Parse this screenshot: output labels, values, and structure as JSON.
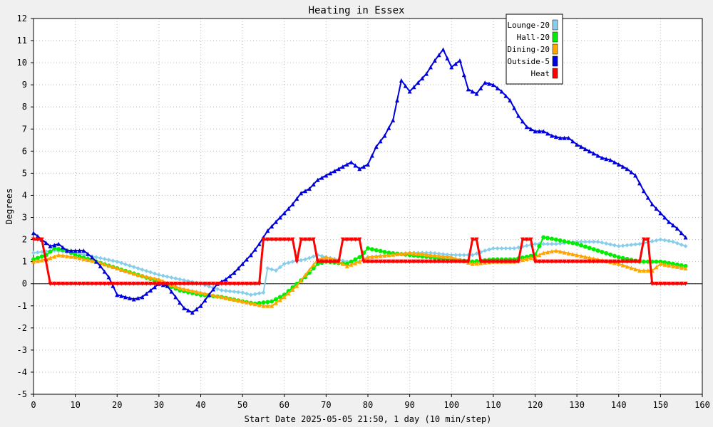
{
  "chart_data": {
    "type": "line",
    "title": "Heating in Essex",
    "xlabel": "Start Date 2025-05-05 21:50, 1 day (10 min/step)",
    "ylabel": "Degrees",
    "xlim": [
      0,
      160
    ],
    "ylim": [
      -5,
      12
    ],
    "xticks": [
      0,
      10,
      20,
      30,
      40,
      50,
      60,
      70,
      80,
      90,
      100,
      110,
      120,
      130,
      140,
      150,
      160
    ],
    "yticks": [
      -5,
      -4,
      -3,
      -2,
      -1,
      0,
      1,
      2,
      3,
      4,
      5,
      6,
      7,
      8,
      9,
      10,
      11,
      12
    ],
    "grid": true,
    "legend_position": "top-right",
    "background": "#f0f0f0",
    "series": [
      {
        "name": "Lounge-20",
        "color": "#87ceeb",
        "marker": "diamond",
        "points": [
          [
            0,
            1.4
          ],
          [
            5,
            1.5
          ],
          [
            10,
            1.4
          ],
          [
            15,
            1.2
          ],
          [
            20,
            1.0
          ],
          [
            25,
            0.7
          ],
          [
            30,
            0.4
          ],
          [
            35,
            0.2
          ],
          [
            40,
            0.0
          ],
          [
            45,
            -0.3
          ],
          [
            50,
            -0.4
          ],
          [
            52,
            -0.5
          ],
          [
            55,
            -0.4
          ],
          [
            56,
            0.7
          ],
          [
            58,
            0.6
          ],
          [
            60,
            0.9
          ],
          [
            62,
            1.0
          ],
          [
            65,
            1.1
          ],
          [
            68,
            1.3
          ],
          [
            70,
            1.2
          ],
          [
            75,
            1.0
          ],
          [
            78,
            1.0
          ],
          [
            80,
            1.2
          ],
          [
            85,
            1.3
          ],
          [
            90,
            1.4
          ],
          [
            95,
            1.4
          ],
          [
            100,
            1.3
          ],
          [
            105,
            1.3
          ],
          [
            108,
            1.5
          ],
          [
            110,
            1.6
          ],
          [
            115,
            1.6
          ],
          [
            120,
            1.8
          ],
          [
            125,
            1.8
          ],
          [
            130,
            1.9
          ],
          [
            135,
            1.9
          ],
          [
            140,
            1.7
          ],
          [
            145,
            1.8
          ],
          [
            150,
            2.0
          ],
          [
            153,
            1.9
          ],
          [
            156,
            1.7
          ]
        ]
      },
      {
        "name": "Hall-20",
        "color": "#00ee00",
        "marker": "circle",
        "points": [
          [
            0,
            1.1
          ],
          [
            3,
            1.3
          ],
          [
            5,
            1.6
          ],
          [
            8,
            1.5
          ],
          [
            10,
            1.3
          ],
          [
            15,
            1.0
          ],
          [
            20,
            0.7
          ],
          [
            25,
            0.4
          ],
          [
            30,
            0.1
          ],
          [
            35,
            -0.3
          ],
          [
            40,
            -0.5
          ],
          [
            45,
            -0.6
          ],
          [
            50,
            -0.8
          ],
          [
            53,
            -0.9
          ],
          [
            57,
            -0.8
          ],
          [
            60,
            -0.5
          ],
          [
            63,
            0.0
          ],
          [
            65,
            0.3
          ],
          [
            68,
            0.9
          ],
          [
            70,
            1.0
          ],
          [
            75,
            0.9
          ],
          [
            78,
            1.2
          ],
          [
            80,
            1.6
          ],
          [
            85,
            1.4
          ],
          [
            90,
            1.3
          ],
          [
            95,
            1.2
          ],
          [
            100,
            1.1
          ],
          [
            105,
            1.0
          ],
          [
            110,
            1.1
          ],
          [
            115,
            1.1
          ],
          [
            120,
            1.3
          ],
          [
            122,
            2.1
          ],
          [
            125,
            2.0
          ],
          [
            130,
            1.8
          ],
          [
            135,
            1.5
          ],
          [
            140,
            1.2
          ],
          [
            145,
            1.0
          ],
          [
            150,
            1.0
          ],
          [
            153,
            0.9
          ],
          [
            156,
            0.8
          ]
        ]
      },
      {
        "name": "Dining-20",
        "color": "#ffa500",
        "marker": "triangle",
        "points": [
          [
            0,
            1.0
          ],
          [
            3,
            1.1
          ],
          [
            6,
            1.3
          ],
          [
            10,
            1.2
          ],
          [
            15,
            1.0
          ],
          [
            20,
            0.7
          ],
          [
            25,
            0.4
          ],
          [
            30,
            0.2
          ],
          [
            35,
            -0.2
          ],
          [
            40,
            -0.4
          ],
          [
            45,
            -0.6
          ],
          [
            50,
            -0.8
          ],
          [
            55,
            -1.0
          ],
          [
            57,
            -1.0
          ],
          [
            60,
            -0.6
          ],
          [
            63,
            -0.1
          ],
          [
            65,
            0.4
          ],
          [
            68,
            1.1
          ],
          [
            70,
            1.2
          ],
          [
            72,
            1.1
          ],
          [
            75,
            0.8
          ],
          [
            78,
            1.0
          ],
          [
            80,
            1.2
          ],
          [
            85,
            1.3
          ],
          [
            90,
            1.4
          ],
          [
            95,
            1.3
          ],
          [
            100,
            1.2
          ],
          [
            105,
            0.9
          ],
          [
            110,
            1.0
          ],
          [
            115,
            1.0
          ],
          [
            120,
            1.2
          ],
          [
            122,
            1.4
          ],
          [
            125,
            1.5
          ],
          [
            130,
            1.3
          ],
          [
            135,
            1.1
          ],
          [
            140,
            0.9
          ],
          [
            145,
            0.6
          ],
          [
            148,
            0.6
          ],
          [
            150,
            0.9
          ],
          [
            153,
            0.8
          ],
          [
            156,
            0.7
          ]
        ]
      },
      {
        "name": "Outside-5",
        "color": "#0000dd",
        "marker": "triangle",
        "points": [
          [
            0,
            2.3
          ],
          [
            2,
            2.0
          ],
          [
            4,
            1.7
          ],
          [
            6,
            1.8
          ],
          [
            8,
            1.5
          ],
          [
            10,
            1.5
          ],
          [
            12,
            1.5
          ],
          [
            14,
            1.2
          ],
          [
            16,
            0.8
          ],
          [
            18,
            0.3
          ],
          [
            20,
            -0.5
          ],
          [
            22,
            -0.6
          ],
          [
            24,
            -0.7
          ],
          [
            26,
            -0.6
          ],
          [
            28,
            -0.3
          ],
          [
            30,
            0.0
          ],
          [
            32,
            -0.1
          ],
          [
            34,
            -0.6
          ],
          [
            36,
            -1.1
          ],
          [
            38,
            -1.3
          ],
          [
            40,
            -1.0
          ],
          [
            42,
            -0.5
          ],
          [
            44,
            0.0
          ],
          [
            46,
            0.2
          ],
          [
            48,
            0.5
          ],
          [
            50,
            0.9
          ],
          [
            52,
            1.3
          ],
          [
            54,
            1.8
          ],
          [
            56,
            2.4
          ],
          [
            58,
            2.8
          ],
          [
            60,
            3.2
          ],
          [
            62,
            3.6
          ],
          [
            64,
            4.1
          ],
          [
            66,
            4.3
          ],
          [
            68,
            4.7
          ],
          [
            70,
            4.9
          ],
          [
            72,
            5.1
          ],
          [
            74,
            5.3
          ],
          [
            76,
            5.5
          ],
          [
            78,
            5.2
          ],
          [
            80,
            5.4
          ],
          [
            82,
            6.2
          ],
          [
            84,
            6.7
          ],
          [
            86,
            7.4
          ],
          [
            88,
            9.2
          ],
          [
            90,
            8.7
          ],
          [
            92,
            9.1
          ],
          [
            94,
            9.5
          ],
          [
            96,
            10.1
          ],
          [
            98,
            10.6
          ],
          [
            100,
            9.8
          ],
          [
            102,
            10.1
          ],
          [
            104,
            8.8
          ],
          [
            106,
            8.6
          ],
          [
            108,
            9.1
          ],
          [
            110,
            9.0
          ],
          [
            112,
            8.7
          ],
          [
            114,
            8.3
          ],
          [
            116,
            7.6
          ],
          [
            118,
            7.1
          ],
          [
            120,
            6.9
          ],
          [
            122,
            6.9
          ],
          [
            124,
            6.7
          ],
          [
            126,
            6.6
          ],
          [
            128,
            6.6
          ],
          [
            130,
            6.3
          ],
          [
            132,
            6.1
          ],
          [
            134,
            5.9
          ],
          [
            136,
            5.7
          ],
          [
            138,
            5.6
          ],
          [
            140,
            5.4
          ],
          [
            142,
            5.2
          ],
          [
            144,
            4.9
          ],
          [
            146,
            4.2
          ],
          [
            148,
            3.6
          ],
          [
            150,
            3.2
          ],
          [
            152,
            2.8
          ],
          [
            154,
            2.5
          ],
          [
            156,
            2.1
          ]
        ]
      },
      {
        "name": "Heat",
        "color": "#ff0000",
        "marker": "triangle-down",
        "points": [
          [
            0,
            2
          ],
          [
            2,
            2
          ],
          [
            4,
            0
          ],
          [
            54,
            0
          ],
          [
            55,
            2
          ],
          [
            62,
            2
          ],
          [
            63,
            1
          ],
          [
            64,
            2
          ],
          [
            67,
            2
          ],
          [
            68,
            1
          ],
          [
            73,
            1
          ],
          [
            74,
            2
          ],
          [
            78,
            2
          ],
          [
            79,
            1
          ],
          [
            104,
            1
          ],
          [
            105,
            2
          ],
          [
            106,
            2
          ],
          [
            107,
            1
          ],
          [
            116,
            1
          ],
          [
            117,
            2
          ],
          [
            119,
            2
          ],
          [
            120,
            1
          ],
          [
            145,
            1
          ],
          [
            146,
            2
          ],
          [
            147,
            2
          ],
          [
            148,
            0
          ],
          [
            156,
            0
          ]
        ]
      }
    ]
  }
}
